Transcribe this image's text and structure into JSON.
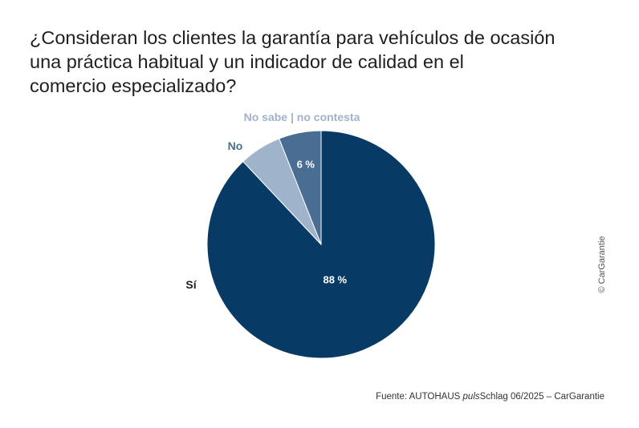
{
  "title_lines": [
    "¿Consideran los clientes la garantía para vehículos de ocasión",
    "una práctica habitual y un indicador de calidad en el",
    "comercio especializado?"
  ],
  "credit": "© CarGarantie",
  "source": {
    "prefix": "Fuente: AUTOHAUS ",
    "italic": "puls",
    "suffix": "Schlag 06/2025 – CarGarantie"
  },
  "colors": {
    "si": "#073b66",
    "no": "#4a6e93",
    "ns": "#9fb3ca"
  },
  "chart_data": {
    "type": "pie",
    "title": "¿Consideran los clientes la garantía para vehículos de ocasión una práctica habitual y un indicador de calidad en el comercio especializado?",
    "start_angle": "12 o'clock",
    "direction": "clockwise",
    "legend": "none",
    "slices": [
      {
        "label": "Sí",
        "value": 88,
        "value_label": "88 %",
        "color": "#073b66"
      },
      {
        "label": "No sabe | no contesta",
        "value": 6,
        "value_label": "",
        "color": "#9fb3ca"
      },
      {
        "label": "No",
        "value": 6,
        "value_label": "6 %",
        "color": "#4a6e93"
      }
    ]
  }
}
